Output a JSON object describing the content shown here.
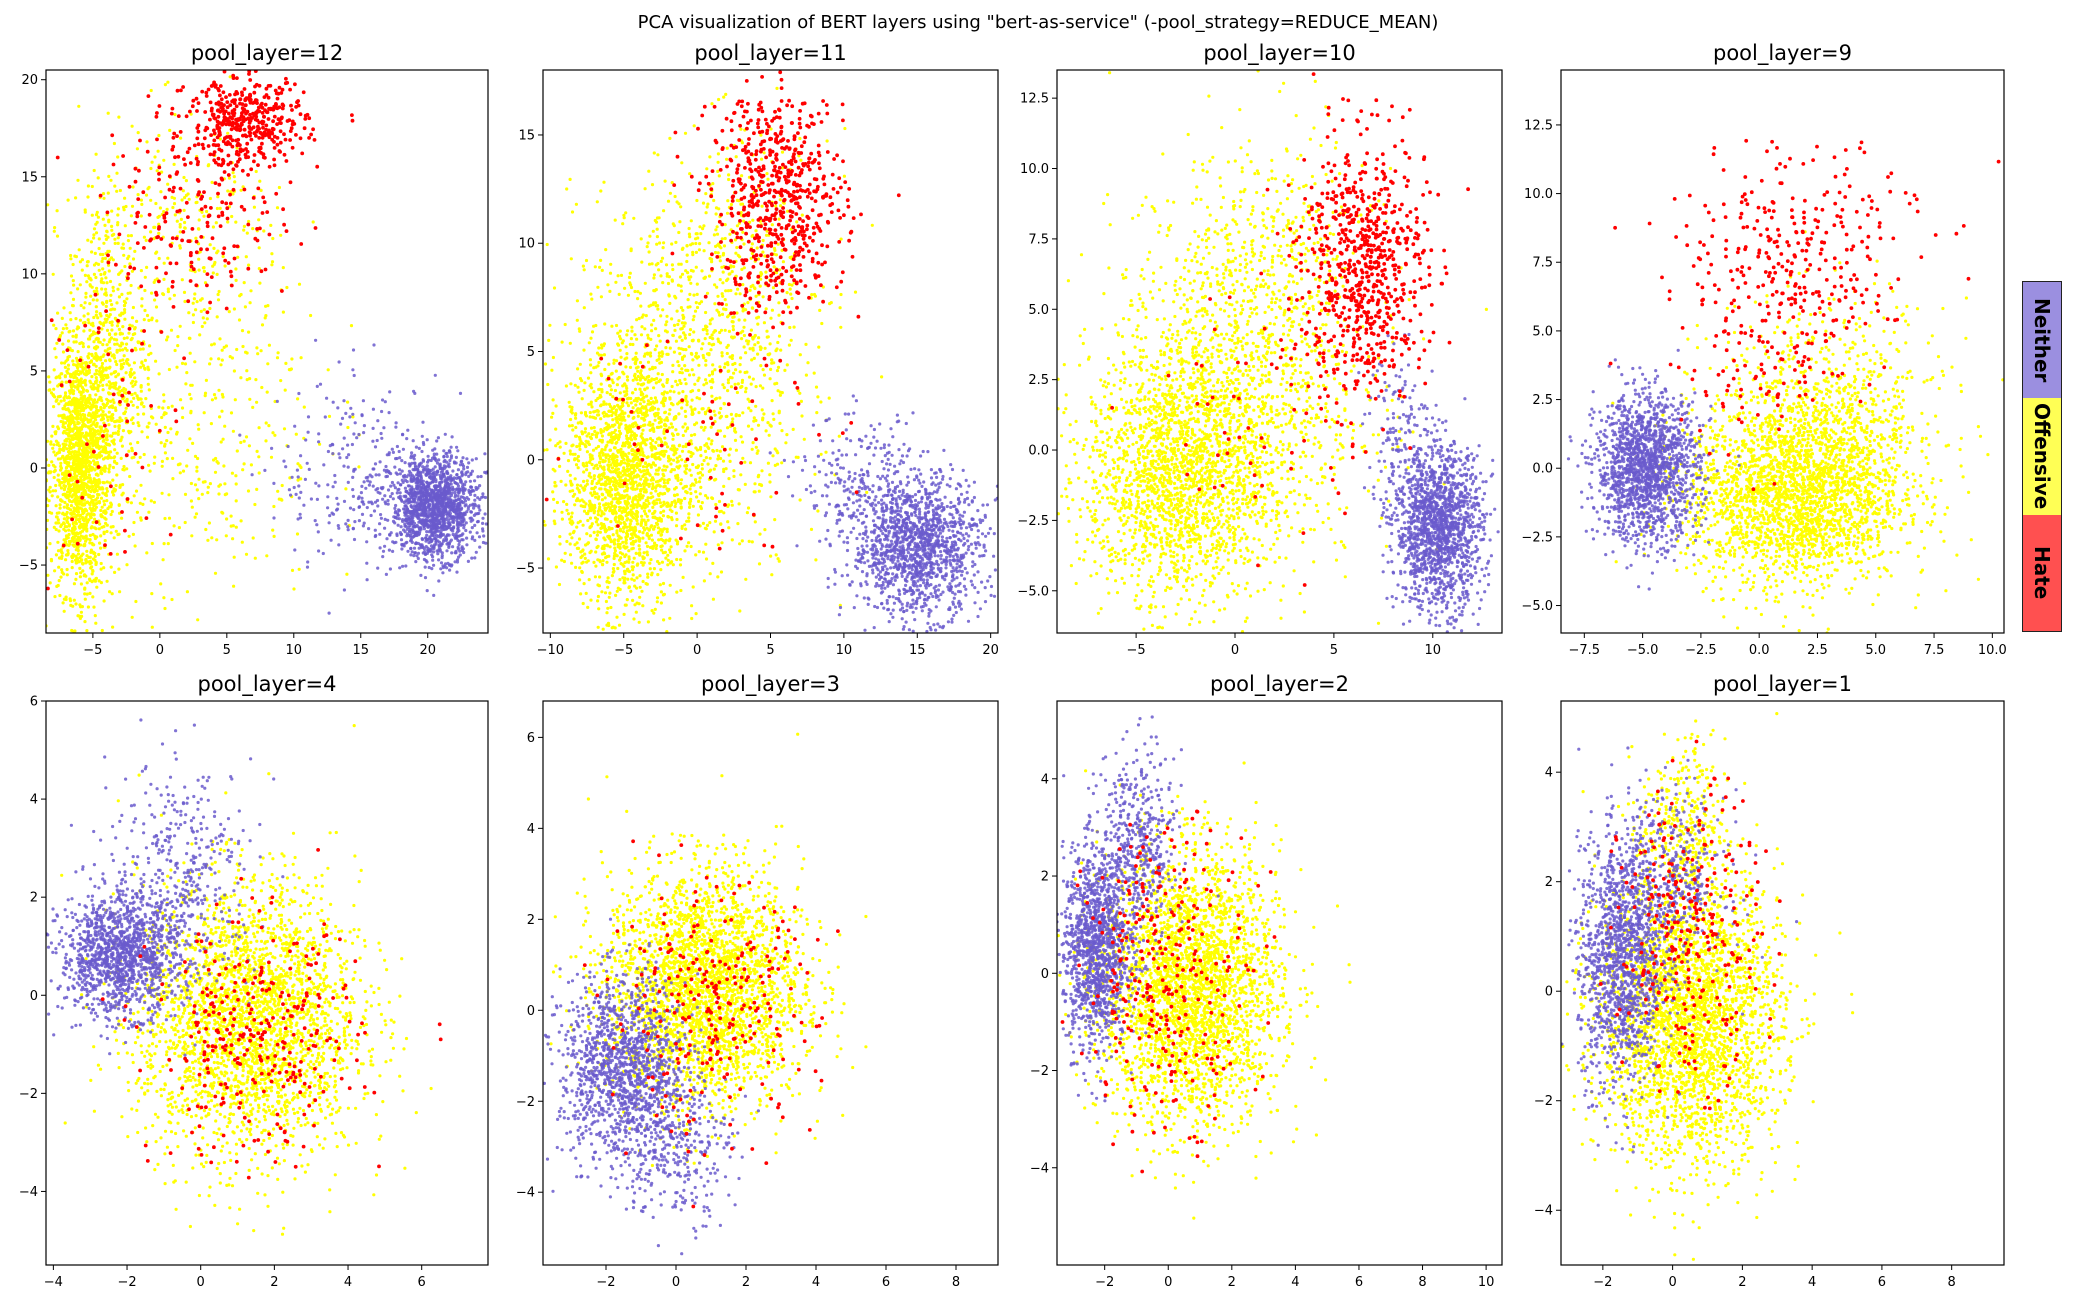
{
  "colors": {
    "Neither": "#6a5acd",
    "Offensive": "#ffff00",
    "Hate": "#ff0000",
    "axis": "#000000"
  },
  "chart_data": {
    "suptitle": "PCA visualization of BERT layers using \"bert-as-service\" (-pool_strategy=REDUCE_MEAN)",
    "type": "scatter",
    "legend": {
      "placement": "right",
      "entries": [
        "Neither",
        "Offensive",
        "Hate"
      ]
    },
    "subplots": [
      {
        "title": "pool_layer=12",
        "xlim": [
          -8.5,
          24.5
        ],
        "ylim": [
          -8.5,
          20.5
        ],
        "xticks": [
          {
            "v": -5,
            "label": "−5"
          },
          {
            "v": 0,
            "label": "0"
          },
          {
            "v": 5,
            "label": "5"
          },
          {
            "v": 10,
            "label": "10"
          },
          {
            "v": 15,
            "label": "15"
          },
          {
            "v": 20,
            "label": "20"
          }
        ],
        "yticks": [
          {
            "v": -5,
            "label": "−5"
          },
          {
            "v": 0,
            "label": "0"
          },
          {
            "v": 5,
            "label": "5"
          },
          {
            "v": 10,
            "label": "10"
          },
          {
            "v": 15,
            "label": "15"
          },
          {
            "v": 20,
            "label": "20"
          }
        ],
        "clusters": [
          {
            "cls": "Offensive",
            "n": 1500,
            "cx": -6,
            "cy": 0,
            "sx": 1.1,
            "sy": 3.2
          },
          {
            "cls": "Offensive",
            "n": 700,
            "cx": -4,
            "cy": 5,
            "sx": 1.5,
            "sy": 4.5
          },
          {
            "cls": "Offensive",
            "n": 450,
            "cx": 2,
            "cy": 3,
            "sx": 5,
            "sy": 5
          },
          {
            "cls": "Offensive",
            "n": 250,
            "cx": 2,
            "cy": 12,
            "sx": 4,
            "sy": 3
          },
          {
            "cls": "Neither",
            "n": 1500,
            "cx": 20.5,
            "cy": -2,
            "sx": 1.6,
            "sy": 1.3
          },
          {
            "cls": "Neither",
            "n": 250,
            "cx": 15,
            "cy": -0.5,
            "sx": 3,
            "sy": 2.5
          },
          {
            "cls": "Hate",
            "n": 420,
            "cx": 6.5,
            "cy": 17.8,
            "sx": 2.2,
            "sy": 1.1
          },
          {
            "cls": "Hate",
            "n": 200,
            "cx": 3,
            "cy": 13,
            "sx": 3.5,
            "sy": 2.5
          },
          {
            "cls": "Hate",
            "n": 60,
            "cx": -4,
            "cy": 3,
            "sx": 2.5,
            "sy": 5
          }
        ]
      },
      {
        "title": "pool_layer=11",
        "xlim": [
          -10.5,
          20.5
        ],
        "ylim": [
          -8,
          18
        ],
        "xticks": [
          {
            "v": -10,
            "label": "−10"
          },
          {
            "v": -5,
            "label": "−5"
          },
          {
            "v": 0,
            "label": "0"
          },
          {
            "v": 5,
            "label": "5"
          },
          {
            "v": 10,
            "label": "10"
          },
          {
            "v": 15,
            "label": "15"
          },
          {
            "v": 20,
            "label": "20"
          }
        ],
        "yticks": [
          {
            "v": -5,
            "label": "−5"
          },
          {
            "v": 0,
            "label": "0"
          },
          {
            "v": 5,
            "label": "5"
          },
          {
            "v": 10,
            "label": "10"
          },
          {
            "v": 15,
            "label": "15"
          }
        ],
        "clusters": [
          {
            "cls": "Offensive",
            "n": 1600,
            "cx": -5,
            "cy": -1,
            "sx": 2,
            "sy": 2.8
          },
          {
            "cls": "Offensive",
            "n": 1100,
            "cx": -1,
            "cy": 3,
            "sx": 3.8,
            "sy": 4.5
          },
          {
            "cls": "Offensive",
            "n": 350,
            "cx": 3,
            "cy": 9,
            "sx": 3,
            "sy": 3
          },
          {
            "cls": "Neither",
            "n": 1400,
            "cx": 15,
            "cy": -4,
            "sx": 2.2,
            "sy": 1.6
          },
          {
            "cls": "Neither",
            "n": 200,
            "cx": 11,
            "cy": -1,
            "sx": 2,
            "sy": 1.5
          },
          {
            "cls": "Hate",
            "n": 650,
            "cx": 5.5,
            "cy": 12,
            "sx": 2.3,
            "sy": 2.6
          },
          {
            "cls": "Hate",
            "n": 60,
            "cx": 0,
            "cy": 2,
            "sx": 4,
            "sy": 3
          }
        ]
      },
      {
        "title": "pool_layer=10",
        "xlim": [
          -9,
          13.5
        ],
        "ylim": [
          -6.5,
          13.5
        ],
        "xticks": [
          {
            "v": -5,
            "label": "−5"
          },
          {
            "v": 0,
            "label": "0"
          },
          {
            "v": 5,
            "label": "5"
          },
          {
            "v": 10,
            "label": "10"
          }
        ],
        "yticks": [
          {
            "v": -5,
            "label": "−5.0"
          },
          {
            "v": -2.5,
            "label": "−2.5"
          },
          {
            "v": 0,
            "label": "0.0"
          },
          {
            "v": 2.5,
            "label": "2.5"
          },
          {
            "v": 5,
            "label": "5.0"
          },
          {
            "v": 7.5,
            "label": "7.5"
          },
          {
            "v": 10,
            "label": "10.0"
          },
          {
            "v": 12.5,
            "label": "12.5"
          }
        ],
        "clusters": [
          {
            "cls": "Offensive",
            "n": 1600,
            "cx": -3,
            "cy": -1,
            "sx": 2.3,
            "sy": 2.2
          },
          {
            "cls": "Offensive",
            "n": 1300,
            "cx": 0,
            "cy": 2,
            "sx": 3.2,
            "sy": 3.2
          },
          {
            "cls": "Offensive",
            "n": 300,
            "cx": 2,
            "cy": 7,
            "sx": 2.5,
            "sy": 2.2
          },
          {
            "cls": "Neither",
            "n": 1500,
            "cx": 10.3,
            "cy": -2.8,
            "sx": 1.1,
            "sy": 1.4
          },
          {
            "cls": "Neither",
            "n": 150,
            "cx": 8.5,
            "cy": 0.5,
            "sx": 1,
            "sy": 1.5
          },
          {
            "cls": "Hate",
            "n": 700,
            "cx": 6.5,
            "cy": 6.5,
            "sx": 1.6,
            "sy": 2.3
          },
          {
            "cls": "Hate",
            "n": 60,
            "cx": 1,
            "cy": 1,
            "sx": 3,
            "sy": 2.5
          }
        ]
      },
      {
        "title": "pool_layer=9",
        "xlim": [
          -8.5,
          10.5
        ],
        "ylim": [
          -6,
          14.5
        ],
        "xticks": [
          {
            "v": -7.5,
            "label": "−7.5"
          },
          {
            "v": -5,
            "label": "−5.0"
          },
          {
            "v": -2.5,
            "label": "−2.5"
          },
          {
            "v": 0,
            "label": "0.0"
          },
          {
            "v": 2.5,
            "label": "2.5"
          },
          {
            "v": 5,
            "label": "5.0"
          },
          {
            "v": 7.5,
            "label": "7.5"
          },
          {
            "v": 10,
            "label": "10.0"
          }
        ],
        "yticks": [
          {
            "v": -5,
            "label": "−5.0"
          },
          {
            "v": -2.5,
            "label": "−2.5"
          },
          {
            "v": 0,
            "label": "0.0"
          },
          {
            "v": 2.5,
            "label": "2.5"
          },
          {
            "v": 5,
            "label": "5.0"
          },
          {
            "v": 7.5,
            "label": "7.5"
          },
          {
            "v": 10,
            "label": "10.0"
          },
          {
            "v": 12.5,
            "label": "12.5"
          }
        ],
        "clusters": [
          {
            "cls": "Offensive",
            "n": 2200,
            "cx": 1.5,
            "cy": -1,
            "sx": 2.3,
            "sy": 1.6
          },
          {
            "cls": "Offensive",
            "n": 700,
            "cx": 3,
            "cy": 2,
            "sx": 2.5,
            "sy": 2
          },
          {
            "cls": "Neither",
            "n": 1600,
            "cx": -4.8,
            "cy": 0,
            "sx": 1.1,
            "sy": 1.3
          },
          {
            "cls": "Hate",
            "n": 280,
            "cx": 0.5,
            "cy": 6,
            "sx": 2.2,
            "sy": 2.3
          },
          {
            "cls": "Hate",
            "n": 120,
            "cx": 3,
            "cy": 9,
            "sx": 2.2,
            "sy": 1.8
          }
        ]
      },
      {
        "title": "pool_layer=4",
        "xlim": [
          -4.2,
          7.8
        ],
        "ylim": [
          -5.5,
          6
        ],
        "xticks": [
          {
            "v": -4,
            "label": "−4"
          },
          {
            "v": -2,
            "label": "−2"
          },
          {
            "v": 0,
            "label": "0"
          },
          {
            "v": 2,
            "label": "2"
          },
          {
            "v": 4,
            "label": "4"
          },
          {
            "v": 6,
            "label": "6"
          }
        ],
        "yticks": [
          {
            "v": -4,
            "label": "−4"
          },
          {
            "v": -2,
            "label": "−2"
          },
          {
            "v": 0,
            "label": "0"
          },
          {
            "v": 2,
            "label": "2"
          },
          {
            "v": 4,
            "label": "4"
          },
          {
            "v": 6,
            "label": "6"
          }
        ],
        "clusters": [
          {
            "cls": "Neither",
            "n": 1300,
            "cx": -2.2,
            "cy": 0.8,
            "sx": 0.8,
            "sy": 0.6
          },
          {
            "cls": "Neither",
            "n": 400,
            "cx": -0.5,
            "cy": 2.5,
            "sx": 1,
            "sy": 1.1
          },
          {
            "cls": "Offensive",
            "n": 2700,
            "cx": 1.3,
            "cy": -0.5,
            "sx": 1.5,
            "sy": 1.4
          },
          {
            "cls": "Hate",
            "n": 300,
            "cx": 1.5,
            "cy": -1,
            "sx": 1.4,
            "sy": 1.2
          }
        ]
      },
      {
        "title": "pool_layer=3",
        "xlim": [
          -3.8,
          9.2
        ],
        "ylim": [
          -5.6,
          6.8
        ],
        "xticks": [
          {
            "v": -2,
            "label": "−2"
          },
          {
            "v": 0,
            "label": "0"
          },
          {
            "v": 2,
            "label": "2"
          },
          {
            "v": 4,
            "label": "4"
          },
          {
            "v": 6,
            "label": "6"
          },
          {
            "v": 8,
            "label": "8"
          }
        ],
        "yticks": [
          {
            "v": -4,
            "label": "−4"
          },
          {
            "v": -2,
            "label": "−2"
          },
          {
            "v": 0,
            "label": "0"
          },
          {
            "v": 2,
            "label": "2"
          },
          {
            "v": 4,
            "label": "4"
          },
          {
            "v": 6,
            "label": "6"
          }
        ],
        "clusters": [
          {
            "cls": "Neither",
            "n": 1300,
            "cx": -1.5,
            "cy": -1.3,
            "sx": 0.9,
            "sy": 1
          },
          {
            "cls": "Neither",
            "n": 300,
            "cx": 0,
            "cy": -3,
            "sx": 0.8,
            "sy": 0.8
          },
          {
            "cls": "Offensive",
            "n": 2700,
            "cx": 0.8,
            "cy": 0.5,
            "sx": 1.4,
            "sy": 1.3
          },
          {
            "cls": "Hate",
            "n": 250,
            "cx": 1,
            "cy": 0,
            "sx": 1.5,
            "sy": 1.3
          }
        ]
      },
      {
        "title": "pool_layer=2",
        "xlim": [
          -3.5,
          10.5
        ],
        "ylim": [
          -6,
          5.6
        ],
        "xticks": [
          {
            "v": -2,
            "label": "−2"
          },
          {
            "v": 0,
            "label": "0"
          },
          {
            "v": 2,
            "label": "2"
          },
          {
            "v": 4,
            "label": "4"
          },
          {
            "v": 6,
            "label": "6"
          },
          {
            "v": 8,
            "label": "8"
          },
          {
            "v": 10,
            "label": "10"
          }
        ],
        "yticks": [
          {
            "v": -4,
            "label": "−4"
          },
          {
            "v": -2,
            "label": "−2"
          },
          {
            "v": 0,
            "label": "0"
          },
          {
            "v": 2,
            "label": "2"
          },
          {
            "v": 4,
            "label": "4"
          }
        ],
        "clusters": [
          {
            "cls": "Neither",
            "n": 1200,
            "cx": -2.3,
            "cy": 0.5,
            "sx": 0.5,
            "sy": 1
          },
          {
            "cls": "Neither",
            "n": 500,
            "cx": -1,
            "cy": 2.5,
            "sx": 0.6,
            "sy": 1
          },
          {
            "cls": "Offensive",
            "n": 2800,
            "cx": 0.7,
            "cy": -0.3,
            "sx": 1.4,
            "sy": 1.4
          },
          {
            "cls": "Hate",
            "n": 280,
            "cx": 0,
            "cy": 0,
            "sx": 1.3,
            "sy": 1.5
          }
        ]
      },
      {
        "title": "pool_layer=1",
        "xlim": [
          -3.2,
          9.5
        ],
        "ylim": [
          -5,
          5.3
        ],
        "xticks": [
          {
            "v": -2,
            "label": "−2"
          },
          {
            "v": 0,
            "label": "0"
          },
          {
            "v": 2,
            "label": "2"
          },
          {
            "v": 4,
            "label": "4"
          },
          {
            "v": 6,
            "label": "6"
          },
          {
            "v": 8,
            "label": "8"
          }
        ],
        "yticks": [
          {
            "v": -4,
            "label": "−4"
          },
          {
            "v": -2,
            "label": "−2"
          },
          {
            "v": 0,
            "label": "0"
          },
          {
            "v": 2,
            "label": "2"
          },
          {
            "v": 4,
            "label": "4"
          }
        ],
        "clusters": [
          {
            "cls": "Neither",
            "n": 1200,
            "cx": -1.5,
            "cy": 0.5,
            "sx": 0.6,
            "sy": 1.1
          },
          {
            "cls": "Neither",
            "n": 500,
            "cx": -0.3,
            "cy": 2,
            "sx": 0.9,
            "sy": 0.8
          },
          {
            "cls": "Offensive",
            "n": 2800,
            "cx": 0.5,
            "cy": -0.5,
            "sx": 1.3,
            "sy": 1.3
          },
          {
            "cls": "Offensive",
            "n": 300,
            "cx": 0.3,
            "cy": 3,
            "sx": 0.6,
            "sy": 0.8
          },
          {
            "cls": "Hate",
            "n": 280,
            "cx": 0.5,
            "cy": 1,
            "sx": 1,
            "sy": 1.3
          }
        ]
      }
    ]
  }
}
